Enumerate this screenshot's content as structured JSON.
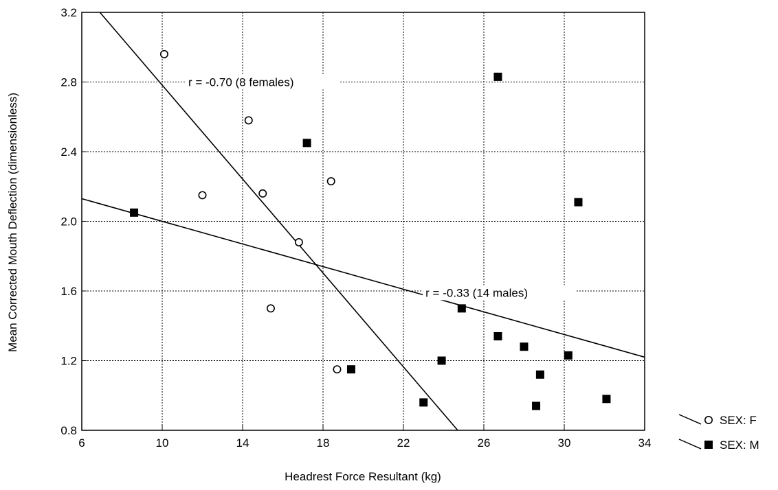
{
  "chart_data": {
    "type": "scatter",
    "title": "",
    "xlabel": "Headrest Force Resultant (kg)",
    "ylabel": "Mean Corrected Mouth Deflection (dimensionless)",
    "xlim": [
      6,
      34
    ],
    "ylim": [
      0.8,
      3.2
    ],
    "x_ticks": [
      "6",
      "10",
      "14",
      "18",
      "22",
      "26",
      "30",
      "34"
    ],
    "y_ticks": [
      "0.8",
      "1.2",
      "1.6",
      "2.0",
      "2.4",
      "2.8",
      "3.2"
    ],
    "grid": true,
    "legend_position": "bottom-right outside",
    "series": [
      {
        "name": "SEX: F",
        "marker": "open-circle",
        "points": [
          {
            "x": 10.1,
            "y": 2.96
          },
          {
            "x": 12.0,
            "y": 2.15
          },
          {
            "x": 14.3,
            "y": 2.58
          },
          {
            "x": 15.0,
            "y": 2.16
          },
          {
            "x": 15.4,
            "y": 1.5
          },
          {
            "x": 16.8,
            "y": 1.88
          },
          {
            "x": 18.4,
            "y": 2.23
          },
          {
            "x": 18.7,
            "y": 1.15
          }
        ],
        "fit": {
          "x": [
            6.9,
            24.7
          ],
          "y": [
            3.2,
            0.8
          ],
          "label": "r = -0.70 (8 females)"
        }
      },
      {
        "name": "SEX: M",
        "marker": "filled-square",
        "points": [
          {
            "x": 8.6,
            "y": 2.05
          },
          {
            "x": 17.2,
            "y": 2.45
          },
          {
            "x": 19.4,
            "y": 1.15
          },
          {
            "x": 23.0,
            "y": 0.96
          },
          {
            "x": 23.9,
            "y": 1.2
          },
          {
            "x": 24.9,
            "y": 1.5
          },
          {
            "x": 26.7,
            "y": 2.83
          },
          {
            "x": 26.7,
            "y": 1.34
          },
          {
            "x": 28.0,
            "y": 1.28
          },
          {
            "x": 28.6,
            "y": 0.94
          },
          {
            "x": 28.8,
            "y": 1.12
          },
          {
            "x": 30.2,
            "y": 1.23
          },
          {
            "x": 30.7,
            "y": 2.11
          },
          {
            "x": 32.1,
            "y": 0.98
          }
        ],
        "fit": {
          "x": [
            6,
            34
          ],
          "y": [
            2.13,
            1.22
          ],
          "label": "r = -0.33 (14 males)"
        }
      }
    ]
  }
}
